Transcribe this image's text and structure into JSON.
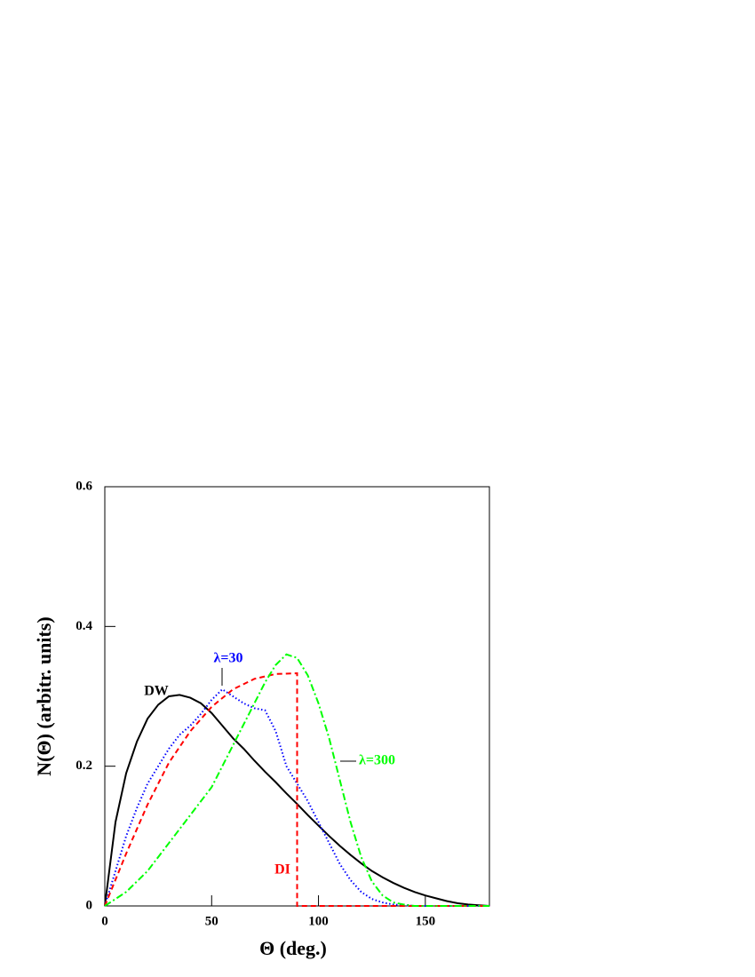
{
  "chart_data": {
    "type": "line",
    "x_label": "Θ (deg.)",
    "y_label": "N(Θ) (arbitr. units)",
    "xlim": [
      0,
      180
    ],
    "ylim": [
      0,
      0.6
    ],
    "xticks": [
      0,
      50,
      100,
      150
    ],
    "yticks": [
      0,
      0.2,
      0.4,
      0.6
    ],
    "series": [
      {
        "name": "DW",
        "color": "#000000",
        "dash": "solid",
        "x": [
          0,
          5,
          10,
          15,
          20,
          25,
          30,
          35,
          40,
          45,
          50,
          55,
          60,
          65,
          70,
          75,
          80,
          85,
          90,
          95,
          100,
          105,
          110,
          115,
          120,
          125,
          130,
          135,
          140,
          145,
          150,
          155,
          160,
          165,
          170,
          175,
          180
        ],
        "values": [
          0,
          0.12,
          0.19,
          0.235,
          0.268,
          0.288,
          0.3,
          0.302,
          0.298,
          0.29,
          0.276,
          0.258,
          0.24,
          0.225,
          0.208,
          0.192,
          0.177,
          0.161,
          0.146,
          0.13,
          0.115,
          0.1,
          0.086,
          0.073,
          0.061,
          0.05,
          0.041,
          0.033,
          0.026,
          0.02,
          0.015,
          0.011,
          0.007,
          0.004,
          0.002,
          0.001,
          0
        ]
      },
      {
        "name": "λ=30",
        "color": "#0000ff",
        "dash": "dotted",
        "x": [
          0,
          5,
          10,
          15,
          20,
          25,
          30,
          35,
          40,
          45,
          50,
          55,
          60,
          65,
          70,
          75,
          80,
          85,
          90,
          95,
          100,
          105,
          110,
          115,
          120,
          125,
          130,
          135,
          140,
          145,
          180
        ],
        "values": [
          0,
          0.05,
          0.1,
          0.14,
          0.175,
          0.2,
          0.225,
          0.245,
          0.258,
          0.275,
          0.295,
          0.31,
          0.3,
          0.29,
          0.283,
          0.28,
          0.25,
          0.2,
          0.175,
          0.15,
          0.12,
          0.09,
          0.06,
          0.037,
          0.02,
          0.01,
          0.005,
          0.002,
          0.001,
          0,
          0
        ]
      },
      {
        "name": "DI",
        "color": "#ff0000",
        "dash": "dashed",
        "x": [
          0,
          10,
          20,
          30,
          40,
          50,
          60,
          70,
          80,
          90,
          90,
          180
        ],
        "values": [
          0,
          0.075,
          0.145,
          0.205,
          0.25,
          0.285,
          0.31,
          0.325,
          0.332,
          0.333,
          0,
          0
        ]
      },
      {
        "name": "λ=300",
        "color": "#00ff00",
        "dash": "dashdot",
        "x": [
          0,
          10,
          20,
          30,
          40,
          50,
          55,
          60,
          65,
          70,
          75,
          80,
          85,
          90,
          95,
          100,
          105,
          110,
          115,
          120,
          125,
          130,
          135,
          140,
          145,
          180
        ],
        "values": [
          0,
          0.02,
          0.05,
          0.09,
          0.13,
          0.17,
          0.2,
          0.23,
          0.26,
          0.29,
          0.32,
          0.345,
          0.36,
          0.355,
          0.33,
          0.29,
          0.24,
          0.18,
          0.12,
          0.07,
          0.035,
          0.015,
          0.005,
          0.002,
          0,
          0
        ]
      }
    ]
  }
}
